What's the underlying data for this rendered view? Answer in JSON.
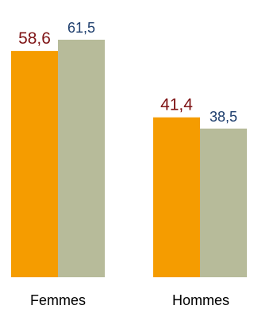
{
  "chart_data": {
    "type": "bar",
    "title": "",
    "xlabel": "",
    "ylabel": "",
    "categories": [
      "Femmes",
      "Hommes"
    ],
    "ylim": [
      0,
      61.5
    ],
    "grid": false,
    "legend": "none",
    "series": [
      {
        "values": [
          58.6,
          41.4
        ],
        "display": [
          "58,6",
          "41,4"
        ],
        "color": "#f59c00",
        "label_color": "#7f1416"
      },
      {
        "values": [
          61.5,
          38.5
        ],
        "display": [
          "61,5",
          "38,5"
        ],
        "color": "#b7bb9a",
        "label_color": "#1f3f6e"
      }
    ]
  }
}
